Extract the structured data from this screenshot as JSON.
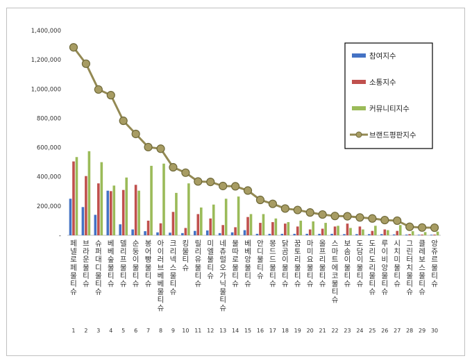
{
  "chart_data": {
    "type": "bar",
    "ylim": [
      0,
      1400000
    ],
    "yticks": [
      "-",
      "200,000",
      "400,000",
      "600,000",
      "800,000",
      "1,000,000",
      "1,200,000",
      "1,400,000"
    ],
    "ytick_values": [
      0,
      200000,
      400000,
      600000,
      800000,
      1000000,
      1200000,
      1400000
    ],
    "grid": false,
    "legend_position": "top-right",
    "numbers": [
      "1",
      "2",
      "3",
      "4",
      "5",
      "6",
      "7",
      "8",
      "9",
      "10",
      "11",
      "12",
      "13",
      "14",
      "15",
      "16",
      "17",
      "18",
      "19",
      "20",
      "21",
      "22",
      "23",
      "24",
      "25",
      "26",
      "27",
      "28",
      "29",
      "30"
    ],
    "categories": [
      "페넬로페 물티슈",
      "브라운 물티슈",
      "슈퍼대디 물티슈",
      "베베숲 물티슈",
      "델리프 물티슈",
      "순둥이 물티슈",
      "봉어빵 물티슈",
      "아이러브베베 물티슈",
      "크리넥스 물티슈",
      "킹 물티슈",
      "릴리유 물티슈",
      "미엘 물티슈",
      "네츄럴오가닉 물티슈",
      "물따로 물티슈",
      "베베앙 물티슈",
      "안디 물티슈",
      "몽드드 물티슈",
      "닭곰이 물티슈",
      "꿈토리 물티슈",
      "마미요 물티슈",
      "올프리 물티슈",
      "스마트에코 물티슈",
      "보솜이 물티슈",
      "도담이 물티슈",
      "도리도리 물티슈",
      "루이비앙 물티슈",
      "시치미 물티슈",
      "그린터치 물티슈",
      "클레보스 물티슈",
      "앙쥬르 물티슈"
    ],
    "series": [
      {
        "name": "참여지수",
        "type": "bar",
        "color": "#4472c4",
        "values": [
          250000,
          193000,
          140000,
          305000,
          75000,
          40000,
          28000,
          20000,
          18000,
          15000,
          30000,
          33000,
          15000,
          20000,
          35000,
          10000,
          10000,
          10000,
          10000,
          10000,
          10000,
          10000,
          8000,
          8000,
          8000,
          8000,
          6000,
          5000,
          4000,
          4000
        ]
      },
      {
        "name": "소통지수",
        "type": "bar",
        "color": "#c0504d",
        "values": [
          505000,
          405000,
          355000,
          302000,
          310000,
          345000,
          100000,
          82000,
          160000,
          50000,
          145000,
          115000,
          70000,
          55000,
          125000,
          85000,
          90000,
          80000,
          60000,
          40000,
          45000,
          60000,
          80000,
          60000,
          30000,
          40000,
          30000,
          8000,
          5000,
          5000
        ]
      },
      {
        "name": "커뮤니티지수",
        "type": "bar",
        "color": "#9bbb59",
        "values": [
          535000,
          575000,
          500000,
          340000,
          395000,
          305000,
          475000,
          490000,
          290000,
          355000,
          190000,
          210000,
          250000,
          265000,
          145000,
          145000,
          115000,
          90000,
          100000,
          95000,
          85000,
          65000,
          50000,
          40000,
          65000,
          35000,
          70000,
          28000,
          22000,
          25000
        ]
      },
      {
        "name": "브랜드평판지수",
        "type": "line",
        "color": "#938953",
        "values": [
          1285000,
          1173000,
          997000,
          958000,
          783000,
          693000,
          603000,
          592000,
          465000,
          428000,
          368000,
          365000,
          337000,
          335000,
          306000,
          242000,
          215000,
          183000,
          173000,
          156000,
          142000,
          132000,
          130000,
          122000,
          115000,
          104000,
          100000,
          58000,
          53000,
          52000
        ]
      }
    ]
  }
}
